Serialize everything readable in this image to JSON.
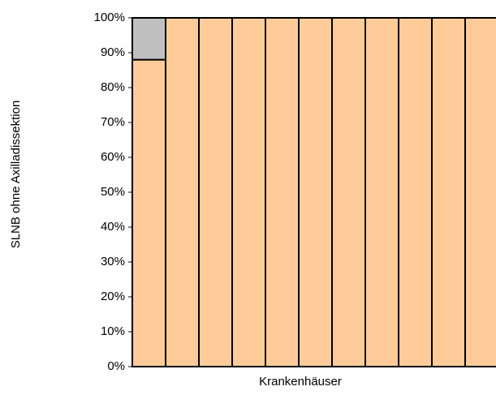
{
  "chart_data": {
    "type": "stacked-bar",
    "y_label": "SLNB ohne Axilladissektion",
    "x_label": "Krankenhäuser",
    "categories": [
      null,
      null,
      null,
      null,
      null,
      null,
      null,
      null,
      null,
      null,
      null
    ],
    "series": [
      {
        "color": "#ffcc99",
        "values": [
          88,
          100,
          100,
          100,
          100,
          100,
          100,
          100,
          100,
          100,
          100
        ]
      },
      {
        "color": "#c0c0c0",
        "values": [
          12,
          0,
          0,
          0,
          0,
          0,
          0,
          0,
          0,
          0,
          0
        ]
      }
    ],
    "ylim": [
      0,
      100
    ],
    "yticks": [
      {
        "value": 0,
        "label": "0%"
      },
      {
        "value": 10,
        "label": "10%"
      },
      {
        "value": 20,
        "label": "20%"
      },
      {
        "value": 30,
        "label": "30%"
      },
      {
        "value": 40,
        "label": "40%"
      },
      {
        "value": 50,
        "label": "50%"
      },
      {
        "value": 60,
        "label": "60%"
      },
      {
        "value": 70,
        "label": "70%"
      },
      {
        "value": 80,
        "label": "80%"
      },
      {
        "value": 90,
        "label": "90%"
      },
      {
        "value": 100,
        "label": "100%"
      }
    ]
  }
}
